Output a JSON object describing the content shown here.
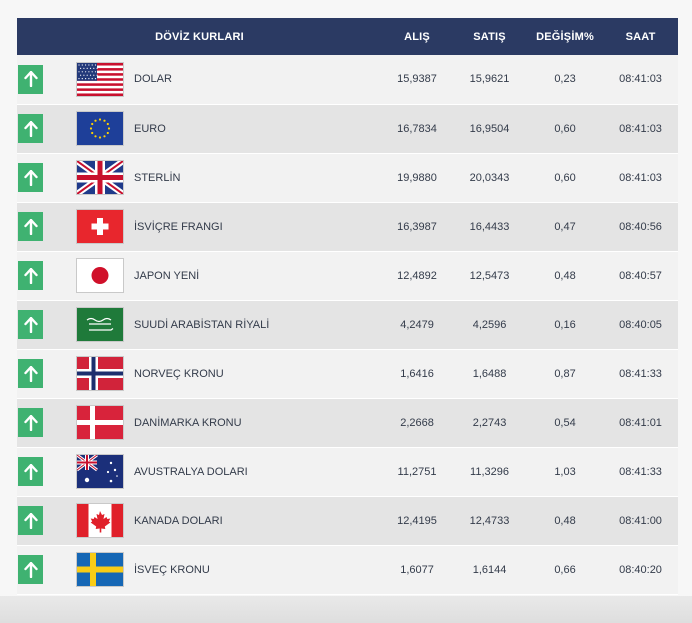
{
  "header": {
    "title": "DÖVİZ KURLARI",
    "buy": "ALIŞ",
    "sell": "SATIŞ",
    "change": "DEĞİŞİM%",
    "time": "SAAT"
  },
  "rows": [
    {
      "name": "DOLAR",
      "buy": "15,9387",
      "sell": "15,9621",
      "change": "0,23",
      "time": "08:41:03",
      "flag": "us-flag",
      "trend": "up-arrow-icon"
    },
    {
      "name": "EURO",
      "buy": "16,7834",
      "sell": "16,9504",
      "change": "0,60",
      "time": "08:41:03",
      "flag": "eu-flag",
      "trend": "up-arrow-icon"
    },
    {
      "name": "STERLİN",
      "buy": "19,9880",
      "sell": "20,0343",
      "change": "0,60",
      "time": "08:41:03",
      "flag": "uk-flag",
      "trend": "up-arrow-icon"
    },
    {
      "name": "İSVİÇRE FRANGI",
      "buy": "16,3987",
      "sell": "16,4433",
      "change": "0,47",
      "time": "08:40:56",
      "flag": "swiss-flag",
      "trend": "up-arrow-icon"
    },
    {
      "name": "JAPON YENİ",
      "buy": "12,4892",
      "sell": "12,5473",
      "change": "0,48",
      "time": "08:40:57",
      "flag": "japan-flag",
      "trend": "up-arrow-icon"
    },
    {
      "name": "SUUDİ ARABİSTAN RİYALİ",
      "buy": "4,2479",
      "sell": "4,2596",
      "change": "0,16",
      "time": "08:40:05",
      "flag": "saudi-flag",
      "trend": "up-arrow-icon"
    },
    {
      "name": "NORVEÇ KRONU",
      "buy": "1,6416",
      "sell": "1,6488",
      "change": "0,87",
      "time": "08:41:33",
      "flag": "norway-flag",
      "trend": "up-arrow-icon"
    },
    {
      "name": "DANİMARKA KRONU",
      "buy": "2,2668",
      "sell": "2,2743",
      "change": "0,54",
      "time": "08:41:01",
      "flag": "denmark-flag",
      "trend": "up-arrow-icon"
    },
    {
      "name": "AVUSTRALYA DOLARI",
      "buy": "11,2751",
      "sell": "11,3296",
      "change": "1,03",
      "time": "08:41:33",
      "flag": "australia-flag",
      "trend": "up-arrow-icon"
    },
    {
      "name": "KANADA DOLARI",
      "buy": "12,4195",
      "sell": "12,4733",
      "change": "0,48",
      "time": "08:41:00",
      "flag": "canada-flag",
      "trend": "up-arrow-icon"
    },
    {
      "name": "İSVEÇ KRONU",
      "buy": "1,6077",
      "sell": "1,6144",
      "change": "0,66",
      "time": "08:40:20",
      "flag": "sweden-flag",
      "trend": "up-arrow-icon"
    }
  ],
  "colors": {
    "header_bg": "#2b3a63",
    "up_green": "#3fb271",
    "text": "#333b4a"
  }
}
